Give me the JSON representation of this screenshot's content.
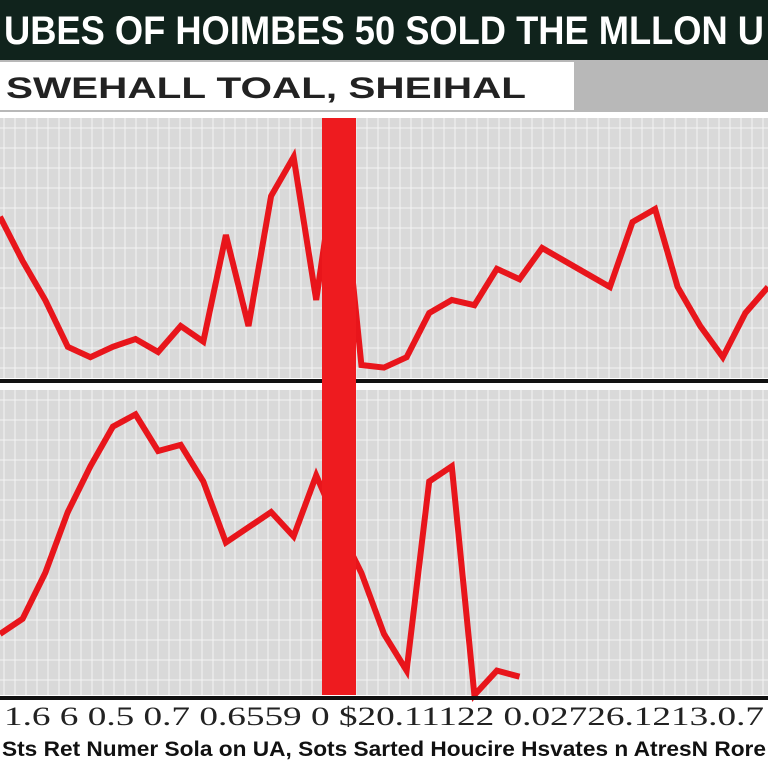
{
  "header": {
    "title": "UBES OF HOIMBES 50 SOLD THE MLLON U",
    "subtitle": "SWEHALL  TOAL, SHEIHAL"
  },
  "chart_data": [
    {
      "type": "line",
      "color": "#e8151b",
      "ylim": [
        0,
        100
      ],
      "values": [
        62,
        45,
        30,
        12,
        8,
        12,
        15,
        10,
        20,
        14,
        55,
        20,
        70,
        85,
        30,
        90,
        5,
        4,
        8,
        25,
        30,
        28,
        42,
        38,
        50,
        45,
        40,
        35,
        60,
        65,
        35,
        20,
        8,
        25,
        35
      ]
    },
    {
      "type": "line",
      "color": "#e8151b",
      "ylim": [
        0,
        100
      ],
      "values": [
        20,
        25,
        40,
        60,
        75,
        88,
        92,
        80,
        82,
        70,
        50,
        55,
        60,
        52,
        72,
        55,
        40,
        20,
        8,
        70,
        75,
        0,
        8,
        6,
        null,
        null,
        null,
        null,
        null,
        null,
        null,
        null,
        null,
        null,
        null
      ]
    }
  ],
  "x_labels": "1.6 6 0.5 0.7 0.6559 0 $20.11122 0.02726.1213.0.7",
  "footer": "Sts Ret Numer Sola on UA, Sots Sarted Houcire Hsvates n AtresN Rore"
}
